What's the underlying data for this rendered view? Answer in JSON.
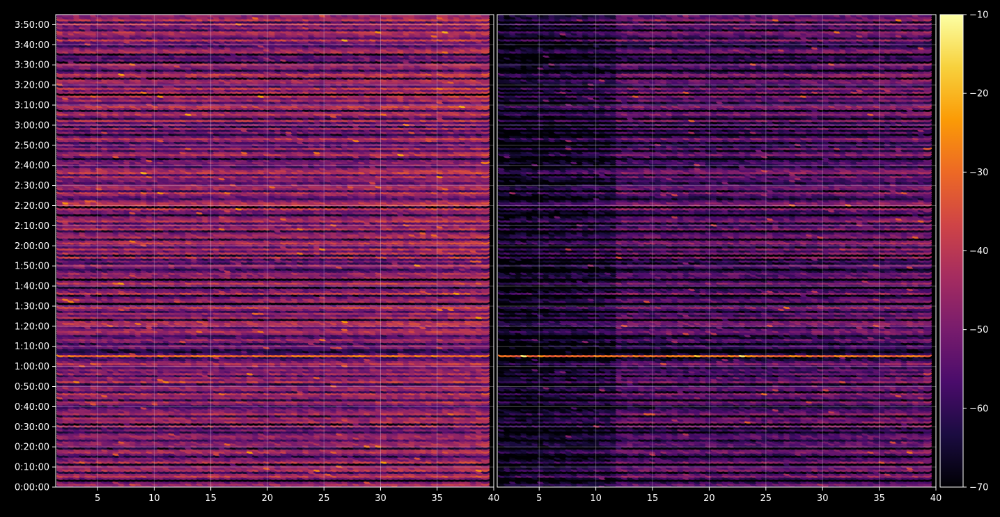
{
  "chart_data": {
    "type": "heatmap",
    "title": "",
    "grid": true,
    "background": "#000000",
    "foreground": "#ffffff",
    "colormap": "inferno",
    "colormap_stops": [
      "#000004",
      "#1b0c41",
      "#4a0c6b",
      "#781c6d",
      "#a52c60",
      "#cf4446",
      "#ed6925",
      "#fb9b06",
      "#f7d13d",
      "#fcffa4"
    ],
    "colorbar": {
      "position": "right",
      "range": [
        -70,
        -10
      ],
      "ticks": [
        -10,
        -20,
        -30,
        -40,
        -50,
        -60,
        -70
      ],
      "tick_labels": [
        "−10",
        "−20",
        "−30",
        "−40",
        "−50",
        "−60",
        "−70"
      ]
    },
    "y_axis": {
      "range_seconds": [
        0,
        14100
      ],
      "ticks_seconds": [
        0,
        600,
        1200,
        1800,
        2400,
        3000,
        3600,
        4200,
        4800,
        5400,
        6000,
        6600,
        7200,
        7800,
        8400,
        9000,
        9600,
        10200,
        10800,
        11400,
        12000,
        12600,
        13200,
        13800
      ],
      "tick_labels": [
        "0:00:00",
        "0:10:00",
        "0:20:00",
        "0:30:00",
        "0:40:00",
        "0:50:00",
        "1:00:00",
        "1:10:00",
        "1:20:00",
        "1:30:00",
        "1:40:00",
        "1:50:00",
        "2:00:00",
        "2:10:00",
        "2:20:00",
        "2:30:00",
        "2:40:00",
        "2:50:00",
        "3:00:00",
        "3:10:00",
        "3:20:00",
        "3:30:00",
        "3:40:00",
        "3:50:00"
      ]
    },
    "panels": [
      {
        "name": "left-panel",
        "x_range": [
          1.3,
          40
        ],
        "x_ticks": [
          5,
          10,
          15,
          20,
          25,
          30,
          35,
          40
        ],
        "x_tick_labels": [
          "5",
          "10",
          "15",
          "20",
          "25",
          "30",
          "35",
          "40"
        ],
        "x_data_range": [
          1.5,
          39.5
        ],
        "base_level": -46,
        "seed": 11
      },
      {
        "name": "right-panel",
        "x_range": [
          1.3,
          40
        ],
        "x_ticks": [
          5,
          10,
          15,
          20,
          25,
          30,
          35,
          40
        ],
        "x_tick_labels": [
          "5",
          "10",
          "15",
          "20",
          "25",
          "30",
          "35",
          "40"
        ],
        "x_data_range": [
          1.5,
          39.5
        ],
        "base_level": -54,
        "seed": 29
      }
    ]
  }
}
